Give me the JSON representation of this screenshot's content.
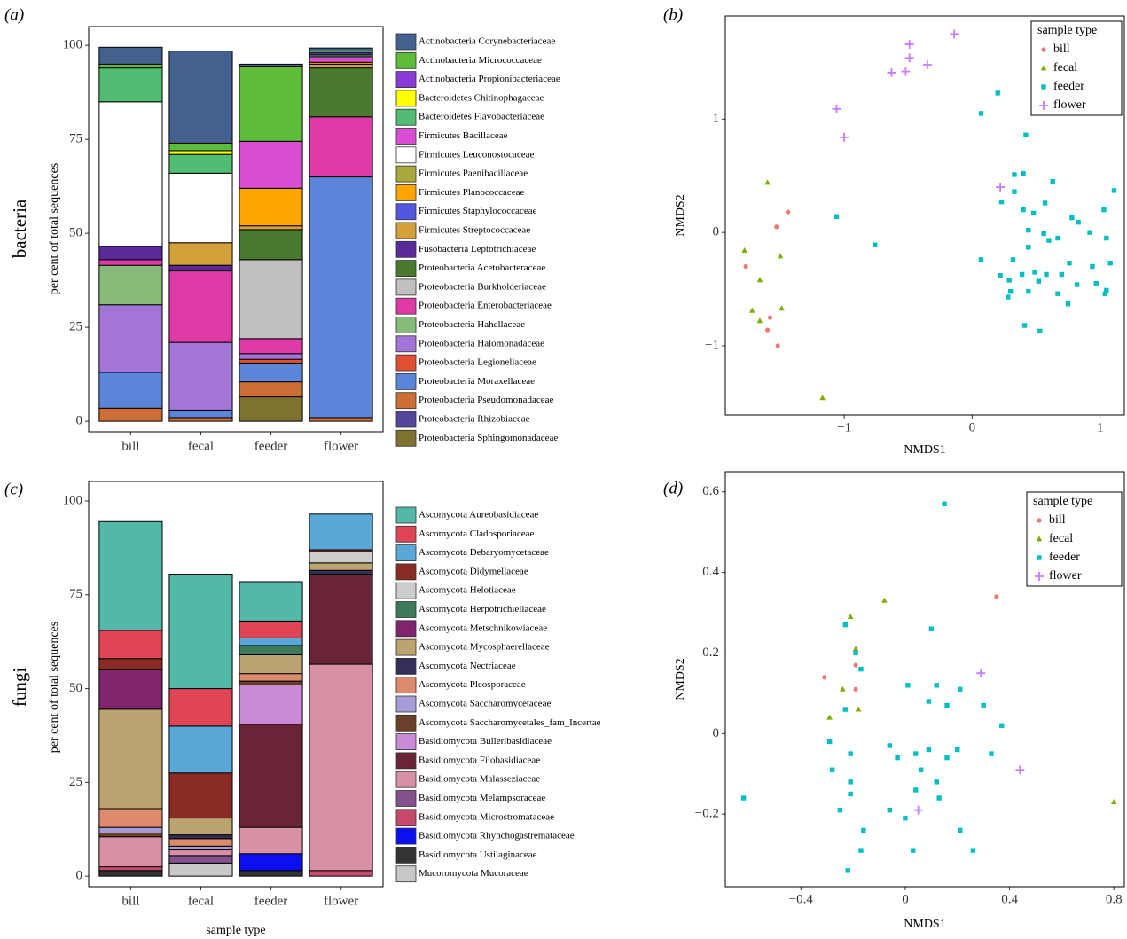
{
  "chart_data": [
    {
      "type": "bar",
      "stacked": true,
      "panel_label": "(a)",
      "row_label": "bacteria",
      "y_label": "per cent of total sequences",
      "categories": [
        "bill",
        "fecal",
        "feeder",
        "flower"
      ],
      "ylim": [
        -2.8,
        105
      ],
      "yticks": [
        0,
        25,
        50,
        75,
        100
      ],
      "series": [
        {
          "name": "Actinobacteria Corynebacteriaceae",
          "color": "#44608e",
          "values": [
            4.5,
            24.5,
            0.5,
            0.8
          ]
        },
        {
          "name": "Actinobacteria Micrococcaceae",
          "color": "#5dbd39",
          "values": [
            1,
            2,
            20,
            0.5
          ]
        },
        {
          "name": "Actinobacteria Propionibacteriaceae",
          "color": "#8a3bd6",
          "values": [
            0,
            0,
            0,
            0.5
          ]
        },
        {
          "name": "Bacteroidetes Chitinophagaceae",
          "color": "#ffff00",
          "values": [
            0,
            1,
            0,
            0
          ]
        },
        {
          "name": "Bacteroidetes Flavobacteriaceae",
          "color": "#50bd72",
          "values": [
            9,
            5,
            0,
            0.5
          ]
        },
        {
          "name": "Firmicutes Bacillaceae",
          "color": "#d84fd3",
          "values": [
            0,
            0,
            12.5,
            1.5
          ]
        },
        {
          "name": "Firmicutes Leuconostocaceae",
          "color": "#ffffff",
          "values": [
            38.5,
            18.5,
            0,
            0
          ]
        },
        {
          "name": "Firmicutes Paenibacillaceae",
          "color": "#a9a83b",
          "values": [
            0,
            0,
            0,
            0
          ]
        },
        {
          "name": "Firmicutes Planococcaceae",
          "color": "#ffa500",
          "values": [
            0,
            0,
            10,
            0.5
          ]
        },
        {
          "name": "Firmicutes Staphylococcaceae",
          "color": "#5357e0",
          "values": [
            0,
            0,
            0,
            0
          ]
        },
        {
          "name": "Firmicutes Streptococcaceae",
          "color": "#d4a03a",
          "values": [
            0,
            6,
            1,
            1
          ]
        },
        {
          "name": "Fusobacteria Leptotrichiaceae",
          "color": "#5a2a9a",
          "values": [
            3.5,
            1.5,
            0,
            0
          ]
        },
        {
          "name": "Proteobacteria Acetobacteraceae",
          "color": "#4a7a2e",
          "values": [
            0,
            0,
            8,
            13
          ]
        },
        {
          "name": "Proteobacteria Burkholderiaceae",
          "color": "#c0c0c0",
          "values": [
            0,
            0,
            21,
            0
          ]
        },
        {
          "name": "Proteobacteria Enterobacteriaceae",
          "color": "#e03aa6",
          "values": [
            1.5,
            19,
            4,
            16
          ]
        },
        {
          "name": "Proteobacteria Hahellaceae",
          "color": "#86bb79",
          "values": [
            10.5,
            0,
            0,
            0
          ]
        },
        {
          "name": "Proteobacteria Halomonadaceae",
          "color": "#a275d6",
          "values": [
            18,
            18,
            1.5,
            0
          ]
        },
        {
          "name": "Proteobacteria Legionellaceae",
          "color": "#e05030",
          "values": [
            0,
            0,
            1,
            0
          ]
        },
        {
          "name": "Proteobacteria Moraxellaceae",
          "color": "#5b85d8",
          "values": [
            9.5,
            2,
            5,
            64
          ]
        },
        {
          "name": "Proteobacteria Pseudomonadaceae",
          "color": "#cd6e36",
          "values": [
            3.5,
            1,
            4,
            1
          ]
        },
        {
          "name": "Proteobacteria Rhizobiaceae",
          "color": "#54469c",
          "values": [
            0,
            0,
            0,
            0
          ]
        },
        {
          "name": "Proteobacteria Sphingomonadaceae",
          "color": "#7f7230",
          "values": [
            0,
            0,
            6.5,
            0
          ]
        }
      ]
    },
    {
      "type": "scatter",
      "panel_label": "(b)",
      "x_label": "NMDS1",
      "y_label": "NMDS2",
      "legend_title": "sample type",
      "xlim": [
        -1.93,
        1.19
      ],
      "ylim": [
        -1.61,
        1.91
      ],
      "xticks": [
        {
          "value": -1,
          "label": "−1"
        },
        0,
        1
      ],
      "yticks": [
        {
          "value": -1,
          "label": "−1"
        },
        0,
        1
      ],
      "series": [
        {
          "name": "bill",
          "color": "#f07a70",
          "marker": "circle",
          "x": [
            -1.44,
            -1.53,
            -1.77,
            -1.58,
            -1.6,
            -1.52
          ],
          "y": [
            0.18,
            0.05,
            -0.3,
            -0.75,
            -0.86,
            -1.0
          ]
        },
        {
          "name": "fecal",
          "color": "#7cae00",
          "marker": "triangle",
          "x": [
            -1.6,
            -1.78,
            -1.5,
            -1.66,
            -1.72,
            -1.49,
            -1.66,
            -1.17
          ],
          "y": [
            0.44,
            -0.16,
            -0.21,
            -0.42,
            -0.69,
            -0.67,
            -0.78,
            -1.46
          ]
        },
        {
          "name": "feeder",
          "color": "#00bfc4",
          "marker": "square",
          "x": [
            0.2,
            0.07,
            0.42,
            0.33,
            0.4,
            0.63,
            0.33,
            1.11,
            0.23,
            -1.06,
            0.4,
            0.48,
            0.57,
            1.03,
            0.78,
            0.83,
            0.44,
            0.56,
            0.67,
            0.92,
            0.6,
            1.05,
            0.44,
            -0.76,
            0.07,
            0.32,
            0.76,
            1.08,
            0.94,
            0.22,
            0.49,
            0.58,
            0.29,
            0.7,
            0.39,
            0.82,
            0.52,
            0.97,
            0.3,
            0.44,
            1.05,
            0.67,
            0.28,
            1.04,
            0.75,
            0.41,
            0.53
          ],
          "y": [
            1.23,
            1.05,
            0.86,
            0.51,
            0.52,
            0.45,
            0.36,
            0.37,
            0.27,
            0.14,
            0.2,
            0.17,
            0.26,
            0.2,
            0.13,
            0.09,
            0.02,
            -0.01,
            -0.05,
            0.0,
            -0.07,
            -0.05,
            -0.13,
            -0.11,
            -0.24,
            -0.24,
            -0.27,
            -0.27,
            -0.3,
            -0.38,
            -0.35,
            -0.37,
            -0.42,
            -0.37,
            -0.37,
            -0.46,
            -0.43,
            -0.45,
            -0.52,
            -0.52,
            -0.51,
            -0.54,
            -0.57,
            -0.54,
            -0.63,
            -0.82,
            -0.87
          ]
        },
        {
          "name": "flower",
          "color": "#c77cff",
          "marker": "plus",
          "x": [
            -0.14,
            -0.49,
            -0.49,
            -0.35,
            -0.63,
            -0.52,
            -1.06,
            -1.0,
            0.22
          ],
          "y": [
            1.75,
            1.66,
            1.54,
            1.48,
            1.41,
            1.42,
            1.09,
            0.84,
            0.4
          ]
        }
      ]
    },
    {
      "type": "bar",
      "stacked": true,
      "panel_label": "(c)",
      "row_label": "fungi",
      "y_label": "per cent of total sequences",
      "x_label": "sample type",
      "categories": [
        "bill",
        "fecal",
        "feeder",
        "flower"
      ],
      "ylim": [
        -2.8,
        105.2
      ],
      "yticks": [
        0,
        25,
        50,
        75,
        100
      ],
      "series": [
        {
          "name": "Ascomycota Aureobasidiaceae",
          "color": "#52b8a8",
          "values": [
            29,
            30.5,
            10.5,
            0
          ]
        },
        {
          "name": "Ascomycota Cladosporiaceae",
          "color": "#df4555",
          "values": [
            7.5,
            10,
            4.5,
            0
          ]
        },
        {
          "name": "Ascomycota Debaryomycetaceae",
          "color": "#5aa8d8",
          "values": [
            0,
            12.5,
            2,
            9.5
          ]
        },
        {
          "name": "Ascomycota Didymellaceae",
          "color": "#8a2c24",
          "values": [
            3,
            12,
            0,
            0.5
          ]
        },
        {
          "name": "Ascomycota Helotiaceae",
          "color": "#cccccc",
          "values": [
            0,
            0,
            0,
            3
          ]
        },
        {
          "name": "Ascomycota Herpotrichiellaceae",
          "color": "#3d7a5a",
          "values": [
            0,
            0,
            2.5,
            0
          ]
        },
        {
          "name": "Ascomycota Metschnikowiaceae",
          "color": "#80246e",
          "values": [
            10.5,
            0,
            0,
            0
          ]
        },
        {
          "name": "Ascomycota Mycosphaerellaceae",
          "color": "#bba470",
          "values": [
            26.5,
            4.5,
            5,
            2
          ]
        },
        {
          "name": "Ascomycota Nectriaceae",
          "color": "#332e5a",
          "values": [
            0,
            1,
            0,
            1
          ]
        },
        {
          "name": "Ascomycota Pleosporaceae",
          "color": "#de8a6c",
          "values": [
            5,
            2,
            2,
            0
          ]
        },
        {
          "name": "Ascomycota Saccharomycetaceae",
          "color": "#a89cd8",
          "values": [
            1.5,
            1,
            0,
            0
          ]
        },
        {
          "name": "Ascomycota Saccharomycetales_fam_Incertae",
          "color": "#6a4028",
          "values": [
            1,
            0,
            1,
            0
          ]
        },
        {
          "name": "Basidiomycota Bulleribasidiaceae",
          "color": "#c98ad8",
          "values": [
            0,
            0,
            10.5,
            0
          ]
        },
        {
          "name": "Basidiomycota Filobasidiaceae",
          "color": "#6a2438",
          "values": [
            0,
            0,
            27.5,
            24
          ]
        },
        {
          "name": "Basidiomycota Malasseziaceae",
          "color": "#d890a4",
          "values": [
            8,
            1.5,
            7,
            55
          ]
        },
        {
          "name": "Basidiomycota Melampsoraceae",
          "color": "#84508e",
          "values": [
            0,
            2,
            0,
            0
          ]
        },
        {
          "name": "Basidiomycota Microstromataceae",
          "color": "#c84a6a",
          "values": [
            1,
            0,
            0,
            1.5
          ]
        },
        {
          "name": "Basidiomycota Rhynchogastremataceae",
          "color": "#0a10f0",
          "values": [
            0,
            0,
            4.5,
            0
          ]
        },
        {
          "name": "Basidiomycota Ustilaginaceae",
          "color": "#333333",
          "values": [
            1.5,
            0,
            1.5,
            0
          ]
        },
        {
          "name": "Mucoromycota Mucoraceae",
          "color": "#c8c8c8",
          "values": [
            0,
            3.5,
            0,
            0
          ]
        }
      ]
    },
    {
      "type": "scatter",
      "panel_label": "(d)",
      "x_label": "NMDS1",
      "y_label": "NMDS2",
      "legend_title": "sample type",
      "xlim": [
        -0.69,
        0.84
      ],
      "ylim": [
        -0.38,
        0.65
      ],
      "xticks": [
        {
          "value": -0.4,
          "label": "−0.4"
        },
        0,
        0.4,
        0.8
      ],
      "yticks": [
        {
          "value": -0.2,
          "label": "−0.2"
        },
        0,
        0.2,
        0.4,
        0.6
      ],
      "series": [
        {
          "name": "bill",
          "color": "#f07a70",
          "marker": "circle",
          "x": [
            -0.31,
            -0.19,
            -0.19,
            0.35
          ],
          "y": [
            0.14,
            0.17,
            0.11,
            0.34
          ]
        },
        {
          "name": "fecal",
          "color": "#7cae00",
          "marker": "triangle",
          "x": [
            -0.21,
            -0.08,
            -0.19,
            -0.24,
            -0.18,
            -0.29,
            0.8
          ],
          "y": [
            0.29,
            0.33,
            0.21,
            0.11,
            0.06,
            0.04,
            -0.17
          ]
        },
        {
          "name": "feeder",
          "color": "#00bfc4",
          "marker": "square",
          "x": [
            0.15,
            -0.23,
            0.1,
            -0.19,
            -0.17,
            0.12,
            0.01,
            0.21,
            0.09,
            0.3,
            0.16,
            -0.23,
            0.37,
            -0.29,
            -0.06,
            0.04,
            0.09,
            0.2,
            0.33,
            0.16,
            -0.21,
            -0.03,
            -0.28,
            0.06,
            -0.21,
            0.12,
            0.04,
            -0.21,
            0.13,
            -0.62,
            -0.06,
            -0.25,
            0.0,
            -0.16,
            0.21,
            0.03,
            -0.17,
            0.26,
            -0.22
          ],
          "y": [
            0.57,
            0.27,
            0.26,
            0.2,
            0.16,
            0.12,
            0.12,
            0.11,
            0.08,
            0.07,
            0.07,
            0.06,
            0.02,
            -0.02,
            -0.03,
            -0.05,
            -0.04,
            -0.04,
            -0.05,
            -0.06,
            -0.05,
            -0.06,
            -0.09,
            -0.09,
            -0.12,
            -0.12,
            -0.14,
            -0.15,
            -0.16,
            -0.16,
            -0.19,
            -0.19,
            -0.21,
            -0.24,
            -0.24,
            -0.29,
            -0.29,
            -0.29,
            -0.34
          ]
        },
        {
          "name": "flower",
          "color": "#c77cff",
          "marker": "plus",
          "x": [
            0.29,
            0.44,
            0.05
          ],
          "y": [
            0.15,
            -0.09,
            -0.19
          ]
        }
      ]
    }
  ]
}
